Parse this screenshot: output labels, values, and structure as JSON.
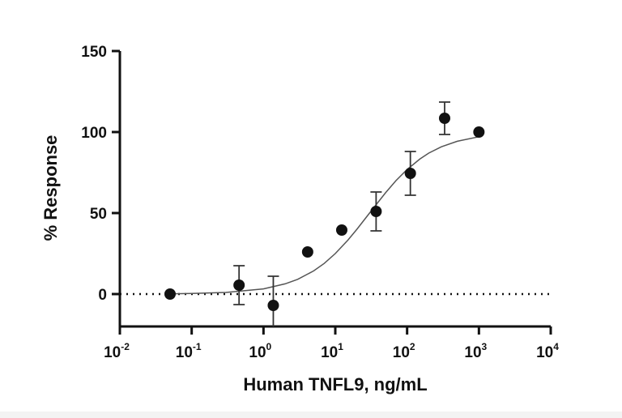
{
  "chart_data": {
    "type": "scatter",
    "x_label": "Human TNFL9, ng/mL",
    "y_label": "% Response",
    "x_scale": "log",
    "color": "#111111",
    "xlim": [
      0.01,
      10000
    ],
    "xticks": [
      {
        "value": 0.01,
        "label": "10",
        "exponent": "-2"
      },
      {
        "value": 0.1,
        "label": "10",
        "exponent": "-1"
      },
      {
        "value": 1,
        "label": "10",
        "exponent": "0"
      },
      {
        "value": 10,
        "label": "10",
        "exponent": "1"
      },
      {
        "value": 100,
        "label": "10",
        "exponent": "2"
      },
      {
        "value": 1000,
        "label": "10",
        "exponent": "3"
      },
      {
        "value": 10000,
        "label": "10",
        "exponent": "4"
      }
    ],
    "ylim": [
      -20,
      150
    ],
    "yticks": [
      0,
      50,
      100,
      150
    ],
    "reference_line": 0,
    "x": [
      0.05,
      0.457,
      1.37,
      4.12,
      12.3,
      37,
      111,
      333,
      1000
    ],
    "values": [
      0,
      5.5,
      -7,
      26,
      39.5,
      51,
      74.5,
      108.5,
      100
    ],
    "errors": [
      0,
      12,
      18,
      0,
      0,
      12,
      13.5,
      10,
      0
    ],
    "fit": {
      "x": [
        0.05,
        0.1,
        0.3,
        1,
        2,
        3,
        5,
        7,
        10,
        15,
        20,
        30,
        50,
        70,
        100,
        150,
        200,
        300,
        500,
        1000
      ],
      "values": [
        0.17,
        0.33,
        0.99,
        3.2,
        6.3,
        9.1,
        14.3,
        18.9,
        25,
        33.3,
        40,
        50,
        62.5,
        70,
        76.9,
        83.3,
        87,
        90.9,
        94.3,
        97.1
      ]
    }
  }
}
